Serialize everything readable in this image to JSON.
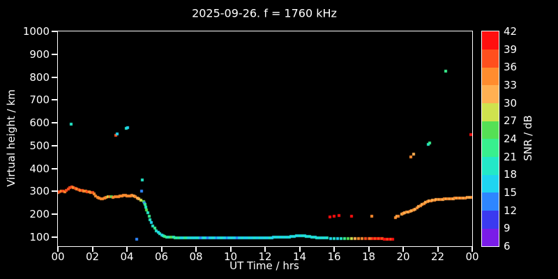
{
  "figure": {
    "background": "#000000",
    "foreground": "#ffffff"
  },
  "chart_data": {
    "type": "scatter",
    "title": "2025-09-26. f = 1760 kHz",
    "xlabel": "UT Time / hrs",
    "ylabel": "Virtual height / km",
    "colorbar_label": "SNR / dB",
    "xlim": [
      0,
      24
    ],
    "ylim": [
      60,
      1000
    ],
    "grid": false,
    "marker_px": 4,
    "xticks": [
      {
        "v": 0,
        "label": "00"
      },
      {
        "v": 2,
        "label": "02"
      },
      {
        "v": 4,
        "label": "04"
      },
      {
        "v": 6,
        "label": "06"
      },
      {
        "v": 8,
        "label": "08"
      },
      {
        "v": 10,
        "label": "10"
      },
      {
        "v": 12,
        "label": "12"
      },
      {
        "v": 14,
        "label": "14"
      },
      {
        "v": 16,
        "label": "16"
      },
      {
        "v": 18,
        "label": "18"
      },
      {
        "v": 20,
        "label": "20"
      },
      {
        "v": 22,
        "label": "22"
      },
      {
        "v": 24,
        "label": "00"
      }
    ],
    "yticks": [
      100,
      200,
      300,
      400,
      500,
      600,
      700,
      800,
      900,
      1000
    ],
    "snr_ticks": [
      6,
      9,
      12,
      15,
      18,
      21,
      24,
      27,
      30,
      33,
      36,
      39,
      42
    ],
    "snr_range": [
      6,
      42
    ],
    "colormap": [
      {
        "lo": 6,
        "hi": 9,
        "color": "#7a1ce8"
      },
      {
        "lo": 9,
        "hi": 12,
        "color": "#3a3af0"
      },
      {
        "lo": 12,
        "hi": 15,
        "color": "#2e86ff"
      },
      {
        "lo": 15,
        "hi": 18,
        "color": "#1fd4f0"
      },
      {
        "lo": 18,
        "hi": 21,
        "color": "#23e8c8"
      },
      {
        "lo": 21,
        "hi": 24,
        "color": "#38ef8e"
      },
      {
        "lo": 24,
        "hi": 27,
        "color": "#55e055"
      },
      {
        "lo": 27,
        "hi": 30,
        "color": "#cfe24e"
      },
      {
        "lo": 30,
        "hi": 33,
        "color": "#ffb052"
      },
      {
        "lo": 33,
        "hi": 36,
        "color": "#ff8c2e"
      },
      {
        "lo": 36,
        "hi": 39,
        "color": "#ff4f1d"
      },
      {
        "lo": 39,
        "hi": 42,
        "color": "#ff0f0f"
      }
    ],
    "points": [
      [
        0.0,
        295,
        35
      ],
      [
        0.1,
        297,
        36
      ],
      [
        0.2,
        300,
        34
      ],
      [
        0.3,
        301,
        37
      ],
      [
        0.4,
        299,
        35
      ],
      [
        0.5,
        304,
        36
      ],
      [
        0.6,
        311,
        38
      ],
      [
        0.7,
        317,
        36
      ],
      [
        0.75,
        595,
        18
      ],
      [
        0.8,
        320,
        37
      ],
      [
        0.9,
        316,
        35
      ],
      [
        1.0,
        312,
        36
      ],
      [
        1.1,
        310,
        34
      ],
      [
        1.2,
        308,
        37
      ],
      [
        1.3,
        305,
        35
      ],
      [
        1.4,
        303,
        36
      ],
      [
        1.5,
        301,
        34
      ],
      [
        1.6,
        300,
        35
      ],
      [
        1.7,
        298,
        36
      ],
      [
        1.8,
        297,
        33
      ],
      [
        1.9,
        296,
        35
      ],
      [
        2.0,
        294,
        36
      ],
      [
        2.1,
        289,
        34
      ],
      [
        2.2,
        281,
        35
      ],
      [
        2.3,
        275,
        33
      ],
      [
        2.4,
        270,
        34
      ],
      [
        2.5,
        268,
        35
      ],
      [
        2.6,
        267,
        33
      ],
      [
        2.7,
        270,
        34
      ],
      [
        2.8,
        274,
        35
      ],
      [
        2.9,
        276,
        27
      ],
      [
        3.0,
        278,
        33
      ],
      [
        3.1,
        276,
        24
      ],
      [
        3.2,
        275,
        34
      ],
      [
        3.3,
        276,
        33
      ],
      [
        3.35,
        545,
        36
      ],
      [
        3.4,
        277,
        35
      ],
      [
        3.42,
        552,
        15
      ],
      [
        3.5,
        278,
        34
      ],
      [
        3.6,
        280,
        35
      ],
      [
        3.7,
        281,
        33
      ],
      [
        3.8,
        283,
        34
      ],
      [
        3.9,
        282,
        35
      ],
      [
        3.95,
        575,
        18
      ],
      [
        4.0,
        280,
        34
      ],
      [
        4.05,
        578,
        15
      ],
      [
        4.1,
        280,
        33
      ],
      [
        4.2,
        281,
        34
      ],
      [
        4.3,
        282,
        33
      ],
      [
        4.4,
        280,
        32
      ],
      [
        4.5,
        278,
        33
      ],
      [
        4.55,
        92,
        12
      ],
      [
        4.6,
        272,
        30
      ],
      [
        4.7,
        268,
        30
      ],
      [
        4.8,
        262,
        27
      ],
      [
        4.85,
        300,
        12
      ],
      [
        4.9,
        350,
        18
      ],
      [
        4.95,
        255,
        24
      ],
      [
        5.0,
        250,
        12
      ],
      [
        5.05,
        242,
        21
      ],
      [
        5.1,
        232,
        18
      ],
      [
        5.15,
        218,
        24
      ],
      [
        5.2,
        206,
        18
      ],
      [
        5.3,
        191,
        21
      ],
      [
        5.35,
        176,
        18
      ],
      [
        5.4,
        165,
        15
      ],
      [
        5.5,
        150,
        18
      ],
      [
        5.6,
        138,
        21
      ],
      [
        5.7,
        128,
        18
      ],
      [
        5.8,
        120,
        15
      ],
      [
        5.9,
        114,
        18
      ],
      [
        6.0,
        110,
        15
      ],
      [
        6.1,
        106,
        18
      ],
      [
        6.2,
        103,
        21
      ],
      [
        6.3,
        101,
        21
      ],
      [
        6.4,
        100,
        18
      ],
      [
        6.5,
        100,
        21
      ],
      [
        6.6,
        99,
        24
      ],
      [
        6.7,
        99,
        18
      ],
      [
        6.8,
        98,
        21
      ],
      [
        6.9,
        98,
        18
      ],
      [
        7.0,
        98,
        21
      ],
      [
        7.1,
        97,
        18
      ],
      [
        7.2,
        97,
        15
      ],
      [
        7.3,
        97,
        18
      ],
      [
        7.4,
        97,
        21
      ],
      [
        7.5,
        96,
        18
      ],
      [
        7.6,
        96,
        15
      ],
      [
        7.7,
        96,
        18
      ],
      [
        7.8,
        96,
        15
      ],
      [
        7.9,
        96,
        18
      ],
      [
        8.0,
        96,
        15
      ],
      [
        8.1,
        96,
        18
      ],
      [
        8.2,
        96,
        15
      ],
      [
        8.3,
        96,
        12
      ],
      [
        8.4,
        96,
        15
      ],
      [
        8.5,
        96,
        18
      ],
      [
        8.6,
        96,
        15
      ],
      [
        8.7,
        96,
        12
      ],
      [
        8.8,
        96,
        15
      ],
      [
        8.9,
        96,
        15
      ],
      [
        9.0,
        96,
        18
      ],
      [
        9.1,
        96,
        15
      ],
      [
        9.2,
        96,
        12
      ],
      [
        9.3,
        96,
        15
      ],
      [
        9.4,
        96,
        15
      ],
      [
        9.5,
        97,
        18
      ],
      [
        9.6,
        97,
        15
      ],
      [
        9.7,
        97,
        15
      ],
      [
        9.8,
        97,
        12
      ],
      [
        9.9,
        97,
        15
      ],
      [
        10.0,
        97,
        15
      ],
      [
        10.1,
        97,
        18
      ],
      [
        10.2,
        97,
        15
      ],
      [
        10.3,
        97,
        15
      ],
      [
        10.4,
        97,
        12
      ],
      [
        10.5,
        97,
        15
      ],
      [
        10.6,
        97,
        15
      ],
      [
        10.7,
        97,
        18
      ],
      [
        10.8,
        97,
        15
      ],
      [
        10.9,
        97,
        15
      ],
      [
        11.0,
        97,
        15
      ],
      [
        11.1,
        97,
        18
      ],
      [
        11.2,
        97,
        15
      ],
      [
        11.3,
        98,
        15
      ],
      [
        11.4,
        98,
        18
      ],
      [
        11.5,
        98,
        15
      ],
      [
        11.6,
        98,
        15
      ],
      [
        11.7,
        98,
        18
      ],
      [
        11.8,
        98,
        15
      ],
      [
        11.9,
        98,
        15
      ],
      [
        12.0,
        98,
        18
      ],
      [
        12.1,
        98,
        15
      ],
      [
        12.2,
        98,
        15
      ],
      [
        12.3,
        98,
        18
      ],
      [
        12.4,
        98,
        15
      ],
      [
        12.5,
        99,
        15
      ],
      [
        12.6,
        99,
        18
      ],
      [
        12.7,
        99,
        15
      ],
      [
        12.8,
        99,
        18
      ],
      [
        12.9,
        99,
        15
      ],
      [
        13.0,
        99,
        18
      ],
      [
        13.1,
        99,
        15
      ],
      [
        13.2,
        100,
        18
      ],
      [
        13.3,
        100,
        15
      ],
      [
        13.4,
        101,
        18
      ],
      [
        13.5,
        102,
        15
      ],
      [
        13.6,
        103,
        18
      ],
      [
        13.7,
        104,
        15
      ],
      [
        13.8,
        105,
        18
      ],
      [
        13.9,
        106,
        15
      ],
      [
        14.0,
        107,
        18
      ],
      [
        14.1,
        107,
        15
      ],
      [
        14.2,
        106,
        18
      ],
      [
        14.3,
        105,
        15
      ],
      [
        14.4,
        104,
        18
      ],
      [
        14.5,
        103,
        15
      ],
      [
        14.6,
        102,
        18
      ],
      [
        14.7,
        101,
        15
      ],
      [
        14.8,
        100,
        18
      ],
      [
        14.9,
        99,
        15
      ],
      [
        15.0,
        98,
        18
      ],
      [
        15.1,
        98,
        15
      ],
      [
        15.2,
        97,
        18
      ],
      [
        15.3,
        97,
        15
      ],
      [
        15.4,
        96,
        18
      ],
      [
        15.5,
        96,
        15
      ],
      [
        15.6,
        96,
        18
      ],
      [
        15.8,
        95,
        15
      ],
      [
        16.0,
        95,
        18
      ],
      [
        16.2,
        95,
        15
      ],
      [
        16.4,
        94,
        18
      ],
      [
        16.6,
        94,
        21
      ],
      [
        16.8,
        94,
        24
      ],
      [
        17.0,
        94,
        27
      ],
      [
        17.2,
        94,
        30
      ],
      [
        17.4,
        93,
        33
      ],
      [
        17.6,
        93,
        33
      ],
      [
        17.8,
        93,
        36
      ],
      [
        18.0,
        93,
        36
      ],
      [
        18.1,
        93,
        33
      ],
      [
        18.2,
        93,
        36
      ],
      [
        18.3,
        93,
        39
      ],
      [
        18.4,
        93,
        36
      ],
      [
        18.5,
        93,
        39
      ],
      [
        18.6,
        93,
        36
      ],
      [
        18.7,
        93,
        39
      ],
      [
        18.8,
        93,
        36
      ],
      [
        18.9,
        92,
        39
      ],
      [
        19.0,
        92,
        39
      ],
      [
        19.1,
        92,
        36
      ],
      [
        19.2,
        92,
        39
      ],
      [
        19.3,
        92,
        36
      ],
      [
        19.4,
        92,
        39
      ],
      [
        15.75,
        188,
        39
      ],
      [
        16.0,
        190,
        42
      ],
      [
        16.3,
        193,
        42
      ],
      [
        17.0,
        190,
        39
      ],
      [
        18.2,
        190,
        33
      ],
      [
        19.55,
        186,
        33
      ],
      [
        19.65,
        190,
        30
      ],
      [
        19.7,
        192,
        33
      ],
      [
        19.9,
        200,
        30
      ],
      [
        20.0,
        203,
        33
      ],
      [
        20.1,
        206,
        30
      ],
      [
        20.2,
        209,
        33
      ],
      [
        20.3,
        211,
        30
      ],
      [
        20.4,
        213,
        33
      ],
      [
        20.45,
        450,
        33
      ],
      [
        20.5,
        216,
        30
      ],
      [
        20.6,
        219,
        33
      ],
      [
        20.62,
        462,
        30
      ],
      [
        20.7,
        223,
        30
      ],
      [
        20.8,
        228,
        33
      ],
      [
        20.9,
        233,
        30
      ],
      [
        21.0,
        238,
        33
      ],
      [
        21.1,
        243,
        30
      ],
      [
        21.2,
        247,
        33
      ],
      [
        21.3,
        251,
        30
      ],
      [
        21.4,
        254,
        33
      ],
      [
        21.45,
        505,
        18
      ],
      [
        21.5,
        257,
        30
      ],
      [
        21.55,
        512,
        21
      ],
      [
        21.6,
        259,
        33
      ],
      [
        21.7,
        261,
        30
      ],
      [
        21.8,
        262,
        33
      ],
      [
        21.9,
        263,
        30
      ],
      [
        22.0,
        264,
        33
      ],
      [
        22.1,
        265,
        30
      ],
      [
        22.2,
        266,
        33
      ],
      [
        22.3,
        266,
        30
      ],
      [
        22.4,
        267,
        33
      ],
      [
        22.45,
        825,
        21
      ],
      [
        22.5,
        267,
        30
      ],
      [
        22.6,
        268,
        33
      ],
      [
        22.7,
        268,
        30
      ],
      [
        22.8,
        269,
        33
      ],
      [
        22.9,
        269,
        30
      ],
      [
        23.0,
        270,
        33
      ],
      [
        23.1,
        270,
        30
      ],
      [
        23.2,
        271,
        33
      ],
      [
        23.3,
        271,
        30
      ],
      [
        23.4,
        272,
        33
      ],
      [
        23.5,
        272,
        30
      ],
      [
        23.6,
        272,
        33
      ],
      [
        23.7,
        273,
        30
      ],
      [
        23.8,
        273,
        33
      ],
      [
        23.85,
        273,
        30
      ],
      [
        23.9,
        548,
        39
      ],
      [
        24.0,
        274,
        33
      ]
    ]
  }
}
